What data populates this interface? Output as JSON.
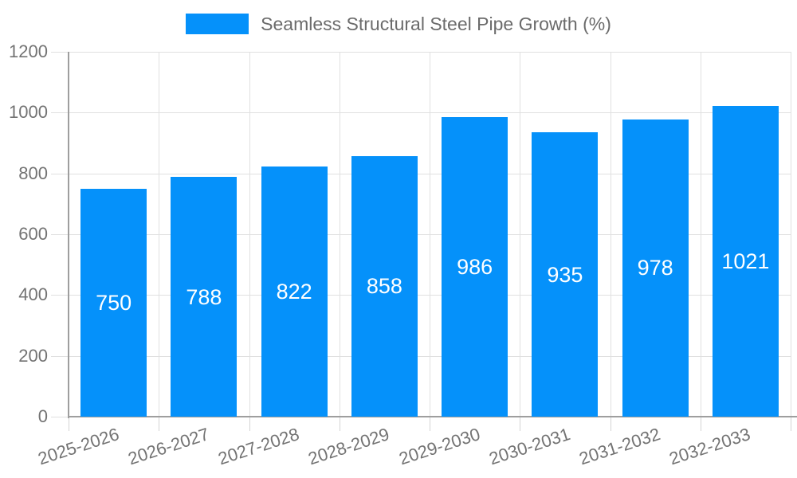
{
  "chart_data": {
    "type": "bar",
    "title": "",
    "series_name": "Seamless Structural Steel Pipe Growth (%)",
    "categories": [
      "2025-2026",
      "2026-2027",
      "2027-2028",
      "2028-2029",
      "2029-2030",
      "2030-2031",
      "2031-2032",
      "2032-2033"
    ],
    "values": [
      750,
      788,
      822,
      858,
      986,
      935,
      978,
      1021
    ],
    "value_labels_shown": true,
    "xlabel": "",
    "ylabel": "",
    "ylim": [
      0,
      1200
    ],
    "yticks": [
      0,
      200,
      400,
      600,
      800,
      1000,
      1200
    ],
    "grid": true,
    "legend_position": "top",
    "x_tick_rotation_deg": -18,
    "colors": {
      "bar": "#0591fa",
      "value_label": "#ffffff",
      "grid": "#e0e0e0",
      "axis": "#9e9e9e",
      "tick": "#d4d4d4",
      "axis_text": "#737373",
      "legend_text": "#6b6b6b",
      "background": "#ffffff"
    }
  }
}
